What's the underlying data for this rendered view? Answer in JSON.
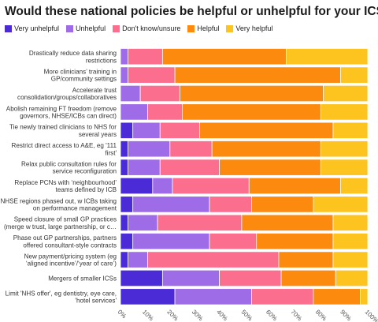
{
  "title": "Would these national policies be helpful or unhelpful for your ICS?",
  "chart_data": {
    "type": "bar",
    "orientation": "horizontal",
    "stacked": true,
    "xlim": [
      0,
      100
    ],
    "xticks": [
      "0%",
      "10%",
      "20%",
      "30%",
      "40%",
      "50%",
      "60%",
      "70%",
      "80%",
      "90%",
      "100%"
    ],
    "categories": [
      [
        "Drastically reduce data sharing",
        "restrictions"
      ],
      [
        "More clinicians’ training in",
        "GP/community settings"
      ],
      [
        "Accelerate trust",
        "consolidation/groups/collaboratives"
      ],
      [
        "Abolish remaining FT freedom (remove",
        "governors, NHSE/ICBs can direct)"
      ],
      [
        "Tie newly trained clinicians to NHS for",
        "several years"
      ],
      [
        "Restrict direct access to A&E, eg '111",
        "first'"
      ],
      [
        "Relax public consultation rules for",
        "service reconfiguration"
      ],
      [
        "Replace PCNs with ‘neighbourhood’",
        "teams defined by ICB"
      ],
      [
        "NHSE regions phased out, w ICBs taking",
        "on performance management"
      ],
      [
        "Speed closure of small GP practices",
        "(merge w trust, large partnership, or c…"
      ],
      [
        "Phase out GP partnerships, partners",
        "offered consultant-style contracts"
      ],
      [
        "New payment/pricing system (eg",
        "‘aligned incentive’/‘year of care’)"
      ],
      [
        "Mergers of smaller ICSs"
      ],
      [
        "Limit 'NHS offer', eg dentistry, eye care,",
        "'hotel services'"
      ]
    ],
    "series": [
      {
        "name": "Very unhelpful",
        "color": "#4b2bd6",
        "values": [
          0,
          0,
          0,
          0,
          5,
          3,
          3,
          13,
          5,
          3,
          5,
          3,
          17,
          22
        ]
      },
      {
        "name": "Unhelpful",
        "color": "#9f6ce8",
        "values": [
          3,
          3,
          8,
          11,
          11,
          17,
          13,
          8,
          31,
          12,
          31,
          8,
          23,
          31
        ]
      },
      {
        "name": "Don't know/unsure",
        "color": "#fb6e8e",
        "values": [
          14,
          19,
          16,
          14,
          16,
          17,
          24,
          31,
          17,
          34,
          19,
          53,
          25,
          25
        ]
      },
      {
        "name": "Helpful",
        "color": "#fb8a0e",
        "values": [
          50,
          67,
          58,
          56,
          54,
          44,
          41,
          37,
          25,
          37,
          31,
          22,
          22,
          19
        ]
      },
      {
        "name": "Very helpful",
        "color": "#fdc41f",
        "values": [
          33,
          11,
          18,
          19,
          14,
          19,
          19,
          11,
          22,
          14,
          14,
          14,
          13,
          3
        ]
      }
    ]
  }
}
